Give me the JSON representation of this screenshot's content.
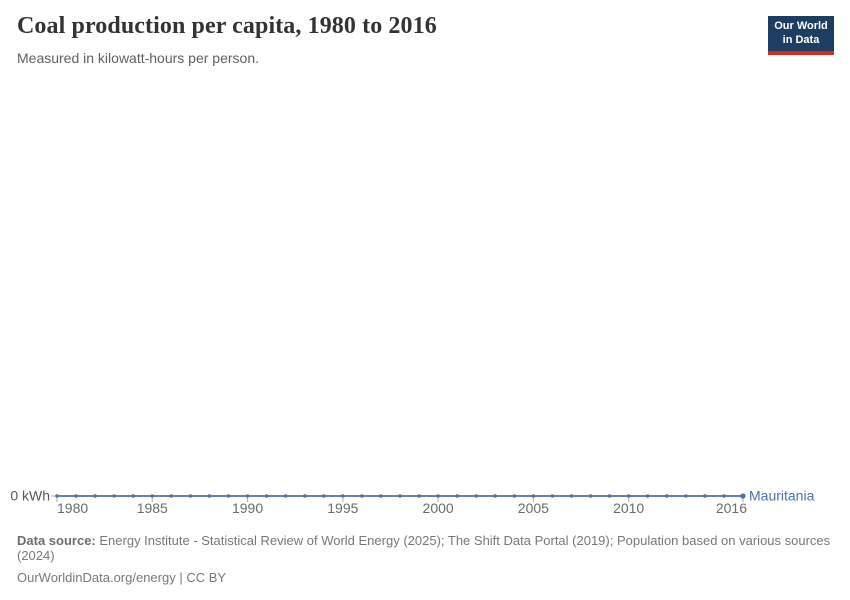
{
  "header": {
    "title": "Coal production per capita, 1980 to 2016",
    "subtitle": "Measured in kilowatt-hours per person.",
    "logo": {
      "line1": "Our World",
      "line2": "in Data",
      "bg_color": "#1d3d63",
      "bar_color": "#d42b21"
    }
  },
  "chart_data": {
    "type": "line",
    "title": "Coal production per capita, 1980 to 2016",
    "subtitle": "Measured in kilowatt-hours per person.",
    "xlabel": "",
    "ylabel": "kilowatt-hours per person",
    "unit": "kWh",
    "grid": false,
    "legend_position": "end-of-line-label",
    "xlim": [
      1980,
      2016
    ],
    "ylim": [
      0,
      0
    ],
    "x_ticks": [
      1980,
      1985,
      1990,
      1995,
      2000,
      2005,
      2010,
      2016
    ],
    "y_ticks": [
      0
    ],
    "y_zero_label": "0 kWh",
    "x": [
      1980,
      1981,
      1982,
      1983,
      1984,
      1985,
      1986,
      1987,
      1988,
      1989,
      1990,
      1991,
      1992,
      1993,
      1994,
      1995,
      1996,
      1997,
      1998,
      1999,
      2000,
      2001,
      2002,
      2003,
      2004,
      2005,
      2006,
      2007,
      2008,
      2009,
      2010,
      2011,
      2012,
      2013,
      2014,
      2015,
      2016
    ],
    "series": [
      {
        "name": "Mauritania",
        "color": "#4c6fb1",
        "values": [
          0,
          0,
          0,
          0,
          0,
          0,
          0,
          0,
          0,
          0,
          0,
          0,
          0,
          0,
          0,
          0,
          0,
          0,
          0,
          0,
          0,
          0,
          0,
          0,
          0,
          0,
          0,
          0,
          0,
          0,
          0,
          0,
          0,
          0,
          0,
          0,
          0
        ]
      }
    ],
    "colors": {
      "tick": "#a4aeba",
      "tick_label": "#6b6b70",
      "axis_unit_label": "#58585c"
    }
  },
  "footer": {
    "source_label": "Data source:",
    "source_text": "Energy Institute - Statistical Review of World Energy (2025); The Shift Data Portal (2019); Population based on various sources (2024)",
    "license_line": "OurWorldinData.org/energy | CC BY"
  }
}
